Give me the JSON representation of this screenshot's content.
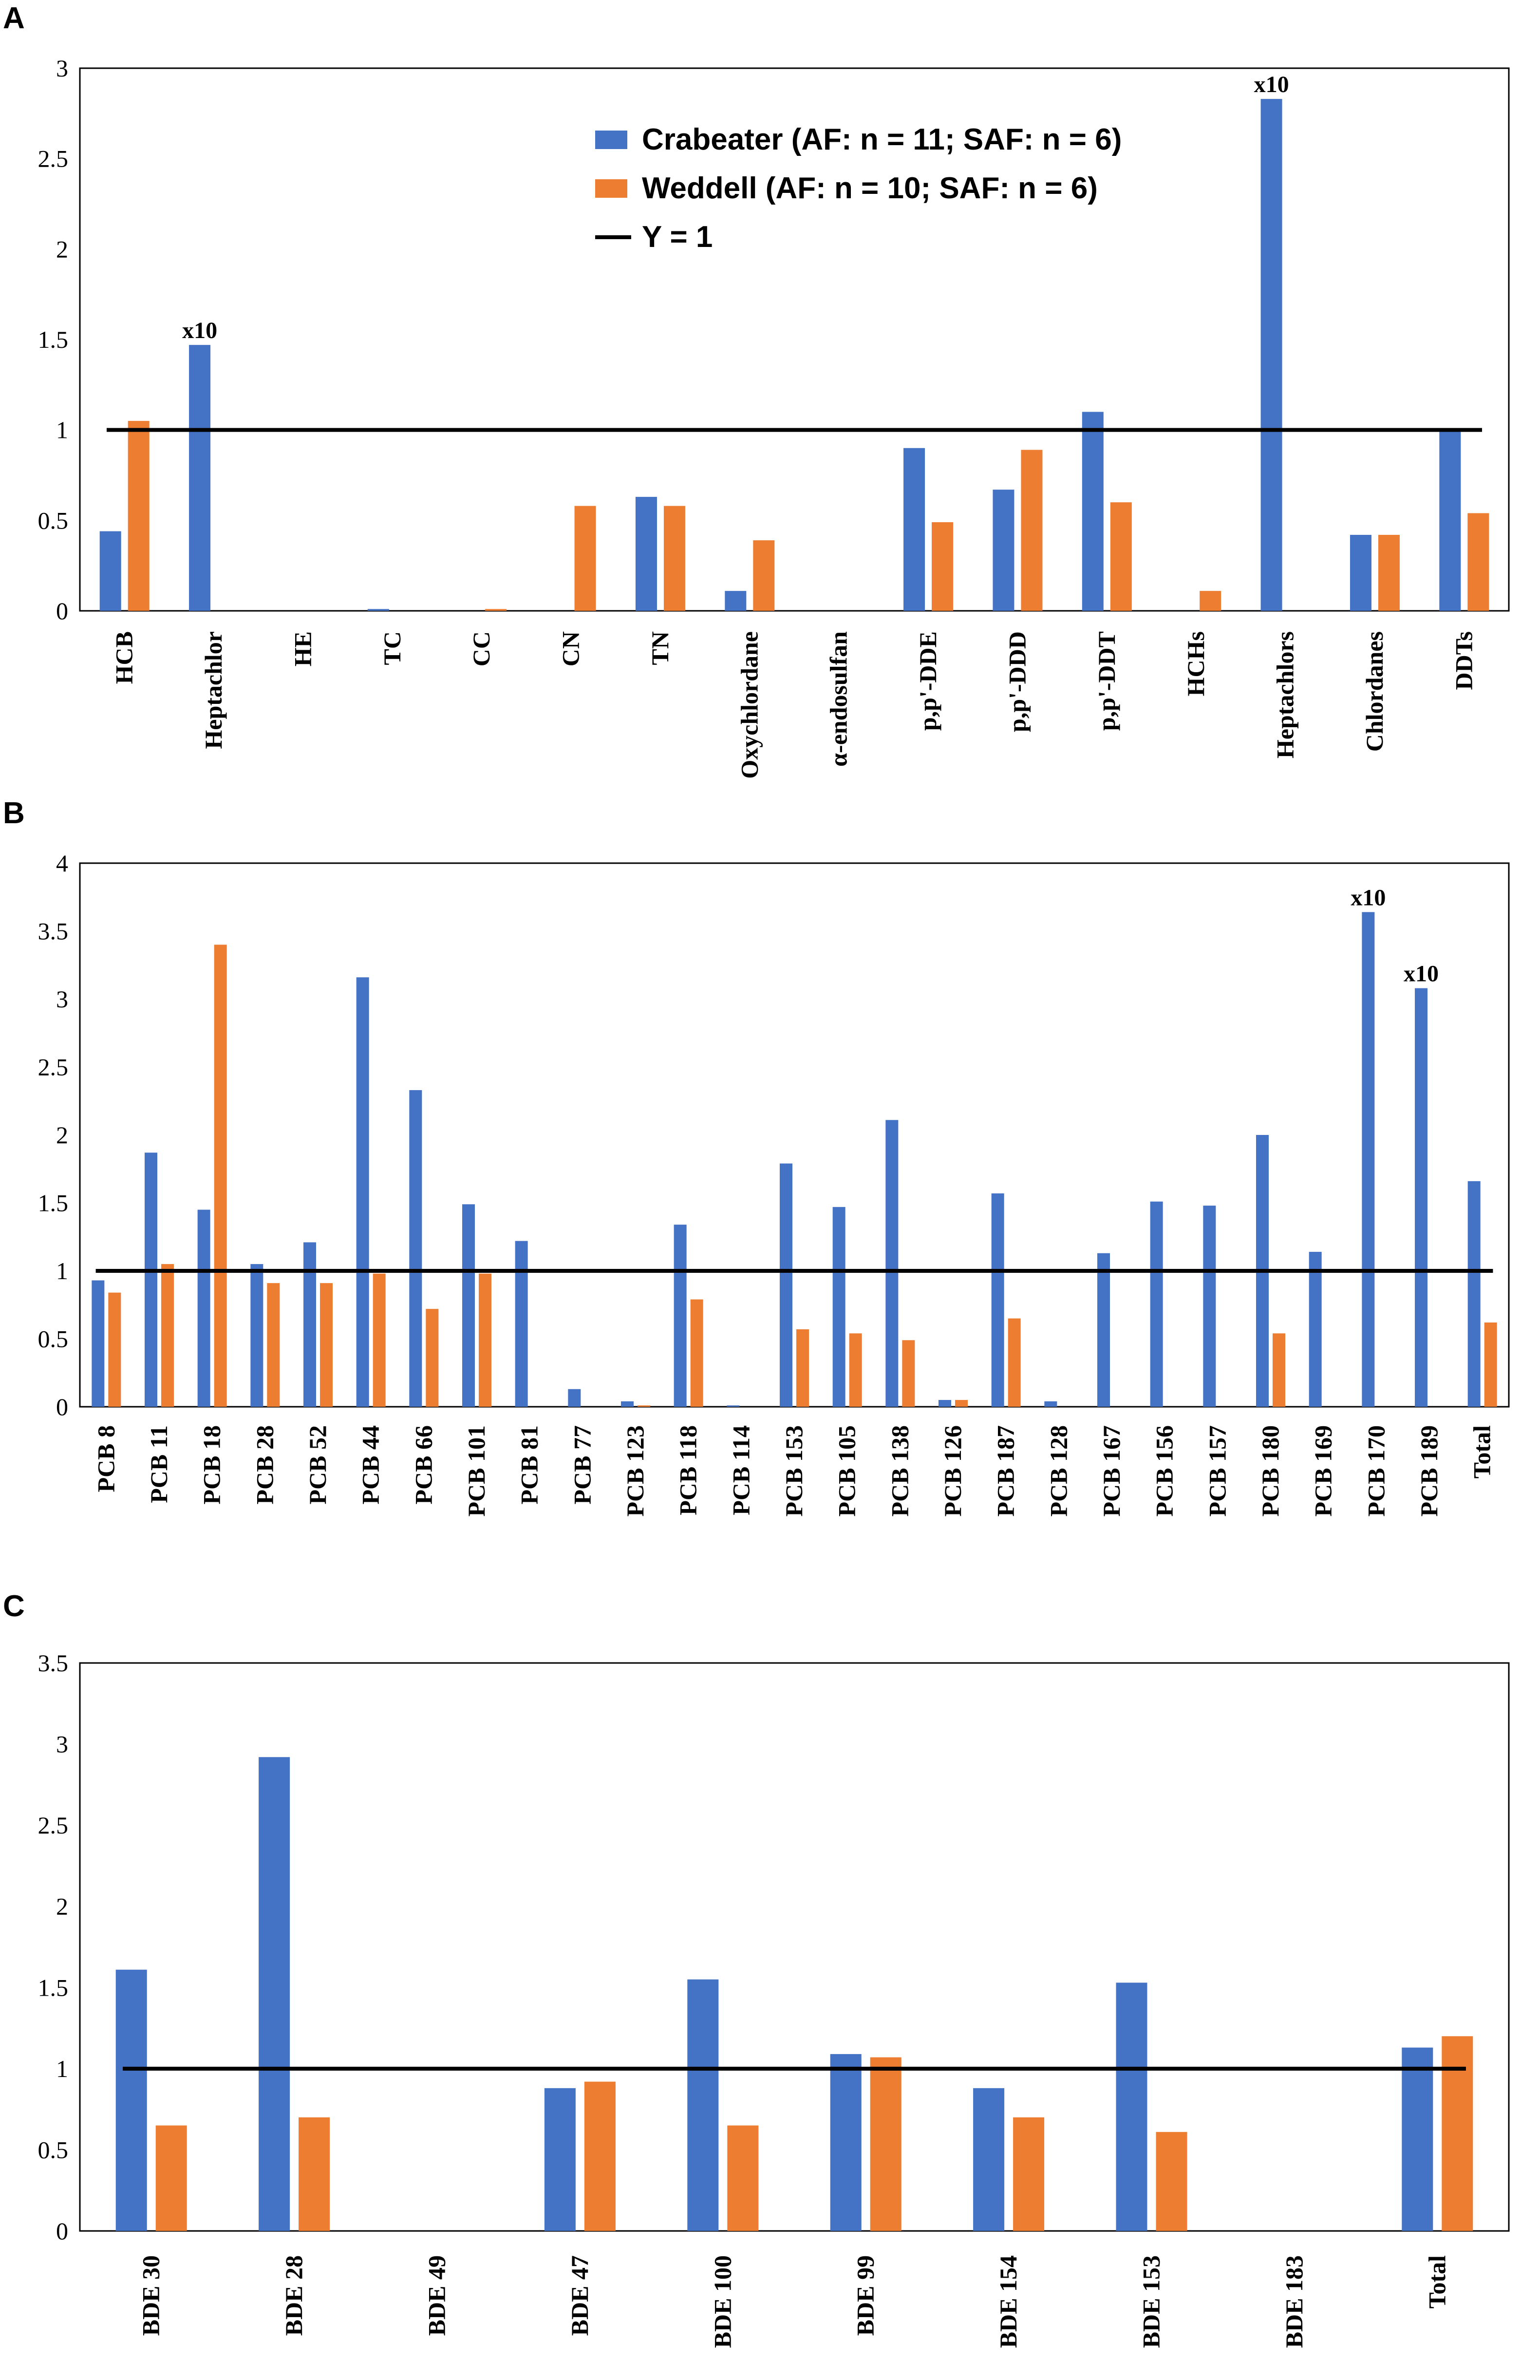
{
  "colors": {
    "crabeater": "#4472C4",
    "weddell": "#ED7D31",
    "reference_line": "#000000"
  },
  "legend": {
    "crabeater": "Crabeater (AF: n = 11; SAF: n = 6)",
    "weddell": "Weddell (AF: n = 10; SAF: n = 6)",
    "line": "Y = 1"
  },
  "chart_data": [
    {
      "panel": "A",
      "type": "bar",
      "ylim": [
        0,
        3
      ],
      "yticks": [
        0,
        0.5,
        1,
        1.5,
        2,
        2.5,
        3
      ],
      "reference_line": 1,
      "categories": [
        "HCB",
        "Heptachlor",
        "HE",
        "TC",
        "CC",
        "CN",
        "TN",
        "Oxychlordane",
        "α-endosulfan",
        "p,p'-DDE",
        "p,p'-DDD",
        "p,p'-DDT",
        "HCHs",
        "Heptachlors",
        "Chlordanes",
        "DDTs"
      ],
      "series": [
        {
          "name": "Crabeater (AF: n = 11; SAF: n = 6)",
          "values": [
            0.44,
            1.47,
            0,
            0.01,
            0,
            0,
            0.63,
            0.11,
            0,
            0.9,
            0.67,
            1.1,
            0,
            2.83,
            0.42,
            1.0
          ]
        },
        {
          "name": "Weddell (AF: n = 10; SAF: n = 6)",
          "values": [
            1.05,
            0,
            0,
            0,
            0.01,
            0.58,
            0.58,
            0.39,
            0,
            0.49,
            0.89,
            0.6,
            0.11,
            0,
            0.42,
            0.54
          ]
        }
      ],
      "annotations": [
        {
          "category": "Heptachlor",
          "text": "x10"
        },
        {
          "category": "Heptachlors",
          "text": "x10"
        }
      ]
    },
    {
      "panel": "B",
      "type": "bar",
      "ylim": [
        0,
        4
      ],
      "yticks": [
        0,
        0.5,
        1,
        1.5,
        2,
        2.5,
        3,
        3.5,
        4
      ],
      "reference_line": 1,
      "categories": [
        "PCB 8",
        "PCB 11",
        "PCB 18",
        "PCB 28",
        "PCB 52",
        "PCB 44",
        "PCB 66",
        "PCB 101",
        "PCB 81",
        "PCB 77",
        "PCB 123",
        "PCB 118",
        "PCB 114",
        "PCB 153",
        "PCB 105",
        "PCB 138",
        "PCB 126",
        "PCB 187",
        "PCB 128",
        "PCB 167",
        "PCB 156",
        "PCB 157",
        "PCB 180",
        "PCB 169",
        "PCB 170",
        "PCB 189",
        "Total"
      ],
      "series": [
        {
          "name": "Crabeater (AF: n = 11; SAF: n = 6)",
          "values": [
            0.93,
            1.87,
            1.45,
            1.05,
            1.21,
            3.16,
            2.33,
            1.49,
            1.22,
            0.13,
            0.04,
            1.34,
            0.01,
            1.79,
            1.47,
            2.11,
            0.05,
            1.57,
            0.04,
            1.13,
            1.51,
            1.48,
            2.0,
            1.14,
            3.64,
            3.08,
            1.66
          ]
        },
        {
          "name": "Weddell (AF: n = 10; SAF: n = 6)",
          "values": [
            0.84,
            1.05,
            3.4,
            0.91,
            0.91,
            0.98,
            0.72,
            0.98,
            0,
            0,
            0.01,
            0.79,
            0,
            0.57,
            0.54,
            0.49,
            0.05,
            0.65,
            0,
            0,
            0,
            0,
            0.54,
            0,
            0,
            0,
            0.62
          ]
        }
      ],
      "annotations": [
        {
          "category": "PCB 170",
          "text": "x10"
        },
        {
          "category": "PCB 189",
          "text": "x10"
        }
      ]
    },
    {
      "panel": "C",
      "type": "bar",
      "ylim": [
        0,
        3.5
      ],
      "yticks": [
        0,
        0.5,
        1,
        1.5,
        2,
        2.5,
        3,
        3.5
      ],
      "reference_line": 1,
      "categories": [
        "BDE 30",
        "BDE 28",
        "BDE 49",
        "BDE 47",
        "BDE 100",
        "BDE 99",
        "BDE 154",
        "BDE 153",
        "BDE 183",
        "Total"
      ],
      "series": [
        {
          "name": "Crabeater (AF: n = 11; SAF: n = 6)",
          "values": [
            1.61,
            2.92,
            0,
            0.88,
            1.55,
            1.09,
            0.88,
            1.53,
            0,
            1.13
          ]
        },
        {
          "name": "Weddell (AF: n = 10; SAF: n = 6)",
          "values": [
            0.65,
            0.7,
            0,
            0.92,
            0.65,
            1.07,
            0.7,
            0.61,
            0,
            1.2
          ]
        }
      ],
      "annotations": []
    }
  ]
}
